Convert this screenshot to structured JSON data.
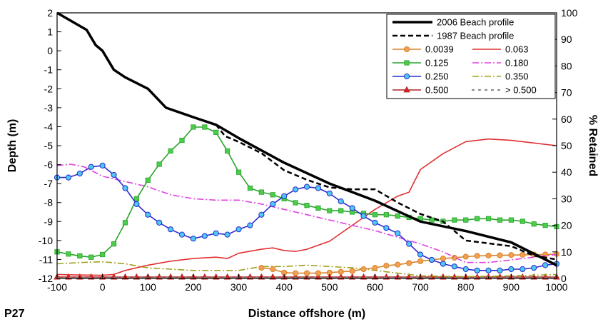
{
  "panel_label": "P27",
  "chart_data": {
    "type": "line",
    "xlabel": "Distance offshore (m)",
    "ylabel_left": "Depth (m)",
    "ylabel_right": "% Retained",
    "xlim": [
      -100,
      1000
    ],
    "ylim_left": [
      -12,
      2
    ],
    "ylim_right": [
      0,
      100
    ],
    "x_ticks": [
      -100,
      0,
      100,
      200,
      300,
      400,
      500,
      600,
      700,
      800,
      900,
      1000
    ],
    "y_left_ticks": [
      2,
      1,
      0,
      -1,
      -2,
      -3,
      -4,
      -5,
      -6,
      -7,
      -8,
      -9,
      -10,
      -11,
      -12
    ],
    "y_right_ticks": [
      100,
      90,
      80,
      70,
      60,
      50,
      40,
      30,
      20,
      10,
      0
    ],
    "grid": false,
    "legend_position": "top-right",
    "series": [
      {
        "name": "2006 Beach profile",
        "axis": "left",
        "color": "#000000",
        "style": "solid-thick",
        "x": [
          -100,
          -35,
          -15,
          0,
          10,
          25,
          50,
          100,
          140,
          200,
          250,
          300,
          400,
          500,
          600,
          700,
          800,
          900,
          1000
        ],
        "y": [
          2.0,
          1.1,
          0.3,
          0.0,
          -0.4,
          -1.0,
          -1.4,
          -2.0,
          -3.0,
          -3.5,
          -3.9,
          -4.6,
          -5.9,
          -7.0,
          -7.9,
          -9.0,
          -9.5,
          -10.1,
          -11.3
        ]
      },
      {
        "name": "1987 Beach profile",
        "axis": "left",
        "color": "#000000",
        "style": "dashed",
        "x": [
          250,
          270,
          300,
          350,
          400,
          450,
          500,
          550,
          600,
          650,
          700,
          750,
          775,
          800,
          900,
          950,
          1000
        ],
        "y": [
          -3.9,
          -4.5,
          -4.8,
          -5.4,
          -6.3,
          -6.8,
          -7.2,
          -7.3,
          -7.3,
          -8.0,
          -8.6,
          -9.0,
          -9.5,
          -10.0,
          -10.3,
          -10.8,
          -11.0
        ]
      },
      {
        "name": "0.0039",
        "axis": "right",
        "color": "#d9822b",
        "style": "solid-circle",
        "x": [
          350,
          375,
          400,
          425,
          450,
          475,
          500,
          525,
          550,
          575,
          600,
          625,
          650,
          675,
          700,
          725,
          750,
          775,
          800,
          825,
          850,
          875,
          900,
          925,
          950,
          975,
          1000
        ],
        "y": [
          4,
          3.5,
          2.2,
          2.0,
          2.0,
          2.0,
          2.2,
          2.5,
          2.8,
          3.5,
          4.0,
          4.8,
          5.2,
          5.8,
          6.5,
          7.0,
          7.5,
          7.8,
          8.2,
          8.5,
          8.6,
          8.7,
          8.8,
          8.9,
          9.0,
          9.0,
          9.2
        ]
      },
      {
        "name": "0.063",
        "axis": "right",
        "color": "#e03030",
        "style": "solid",
        "x": [
          -100,
          -50,
          0,
          25,
          50,
          100,
          150,
          200,
          250,
          275,
          300,
          350,
          375,
          400,
          425,
          450,
          500,
          550,
          600,
          650,
          675,
          700,
          750,
          800,
          850,
          900,
          950,
          1000
        ],
        "y": [
          1.5,
          1.3,
          1.2,
          1.5,
          3.0,
          5.0,
          6.5,
          7.5,
          8.0,
          7.5,
          9.5,
          11.0,
          11.5,
          10.5,
          10.2,
          11.0,
          14.0,
          20.0,
          26.0,
          31.0,
          32.5,
          41.0,
          47.0,
          51.5,
          52.5,
          52.0,
          51.0,
          50.0
        ]
      },
      {
        "name": "0.125",
        "axis": "right",
        "color": "#29a329",
        "style": "solid-square",
        "x": [
          -100,
          -75,
          -50,
          -25,
          0,
          25,
          50,
          75,
          100,
          125,
          150,
          175,
          200,
          225,
          250,
          275,
          300,
          325,
          350,
          375,
          400,
          425,
          450,
          475,
          500,
          525,
          550,
          575,
          600,
          625,
          650,
          675,
          700,
          725,
          750,
          775,
          800,
          825,
          850,
          875,
          900,
          925,
          950,
          975,
          1000
        ],
        "y": [
          10,
          9.2,
          8.5,
          8.0,
          9.0,
          13.0,
          21.0,
          30.0,
          37.0,
          43.0,
          48.0,
          52.0,
          57.0,
          57.0,
          55.0,
          48.0,
          40.0,
          34.0,
          32.5,
          31.5,
          30.0,
          28.5,
          27.5,
          26.5,
          25.5,
          25.5,
          25.0,
          24.5,
          24.0,
          24.0,
          23.5,
          23.0,
          22.5,
          22.0,
          21.5,
          22.0,
          22.0,
          22.5,
          22.5,
          22.0,
          22.0,
          21.5,
          20.5,
          20.0,
          19.5
        ]
      },
      {
        "name": "0.180",
        "axis": "right",
        "color": "#e040e0",
        "style": "dashdot",
        "x": [
          -100,
          -70,
          -40,
          0,
          50,
          100,
          150,
          200,
          250,
          300,
          350,
          400,
          450,
          500,
          550,
          600,
          650,
          700,
          750,
          800,
          850,
          900,
          950,
          1000
        ],
        "y": [
          42.5,
          43.0,
          42.0,
          38.5,
          36.5,
          34.5,
          31.5,
          30.0,
          29.5,
          29.5,
          28.0,
          26.0,
          24.0,
          22.0,
          20.0,
          18.0,
          15.5,
          13.0,
          10.0,
          6.0,
          6.0,
          7.0,
          8.0,
          9.0
        ]
      },
      {
        "name": "0.250",
        "axis": "right",
        "color": "#2b2bd0",
        "style": "solid-circle",
        "x": [
          -100,
          -75,
          -50,
          -25,
          0,
          25,
          50,
          75,
          100,
          125,
          150,
          175,
          200,
          225,
          250,
          275,
          300,
          325,
          350,
          375,
          400,
          425,
          450,
          475,
          500,
          525,
          550,
          575,
          600,
          625,
          650,
          675,
          700,
          725,
          750,
          775,
          800,
          825,
          850,
          875,
          900,
          925,
          950,
          975,
          1000
        ],
        "y": [
          38,
          38,
          39.5,
          42,
          42.5,
          39,
          34,
          28,
          24,
          21,
          18.5,
          16.5,
          15,
          16,
          17,
          16.5,
          18.5,
          20.0,
          24.0,
          28.0,
          31.0,
          33.5,
          34.5,
          34.0,
          32.0,
          29.0,
          26.5,
          23.5,
          21.0,
          19.0,
          17.0,
          13.0,
          9.0,
          7.0,
          5.5,
          4.5,
          3.5,
          3.0,
          3.0,
          3.0,
          3.5,
          3.5,
          4.0,
          5.0,
          5.5
        ]
      },
      {
        "name": "0.350",
        "axis": "right",
        "color": "#a0a020",
        "style": "dashdot",
        "x": [
          -100,
          -50,
          0,
          50,
          100,
          150,
          200,
          250,
          300,
          350,
          400,
          450,
          500,
          550,
          600,
          650,
          700,
          750,
          800,
          850,
          900,
          950,
          1000
        ],
        "y": [
          5.5,
          6.0,
          6.3,
          5.5,
          4.0,
          3.5,
          3.0,
          3.0,
          3.0,
          4.5,
          4.5,
          5.0,
          4.5,
          4.0,
          3.0,
          2.0,
          1.0,
          0.8,
          0.7,
          0.8,
          1.0,
          1.2,
          1.5
        ]
      },
      {
        "name": "0.500",
        "axis": "right",
        "color": "#b02020",
        "style": "solid-triangle",
        "x": [
          -100,
          -75,
          -50,
          -25,
          0,
          25,
          50,
          75,
          100,
          125,
          150,
          175,
          200,
          225,
          250,
          275,
          300,
          325,
          350,
          375,
          400,
          425,
          450,
          475,
          500,
          525,
          550,
          575,
          600,
          625,
          650,
          675,
          700,
          725,
          750,
          775,
          800,
          825,
          850,
          875,
          900,
          925,
          950,
          975,
          1000
        ],
        "y": [
          0.5,
          0.5,
          0.5,
          0.5,
          0.5,
          0.5,
          0.5,
          0.5,
          0.5,
          0.5,
          0.5,
          0.5,
          0.5,
          0.5,
          0.5,
          0.5,
          0.5,
          0.5,
          0.5,
          0.5,
          0.5,
          0.5,
          0.5,
          0.5,
          0.5,
          0.5,
          0.5,
          0.5,
          0.5,
          0.5,
          0.5,
          0.5,
          0.5,
          0.5,
          0.5,
          0.5,
          0.5,
          0.5,
          0.5,
          0.5,
          0.5,
          0.5,
          0.5,
          0.5,
          0.5
        ]
      },
      {
        "name": "> 0.500",
        "axis": "right",
        "color": "#888888",
        "style": "dotted",
        "x": [
          -100,
          1000
        ],
        "y": [
          0.3,
          0.3
        ]
      }
    ]
  }
}
